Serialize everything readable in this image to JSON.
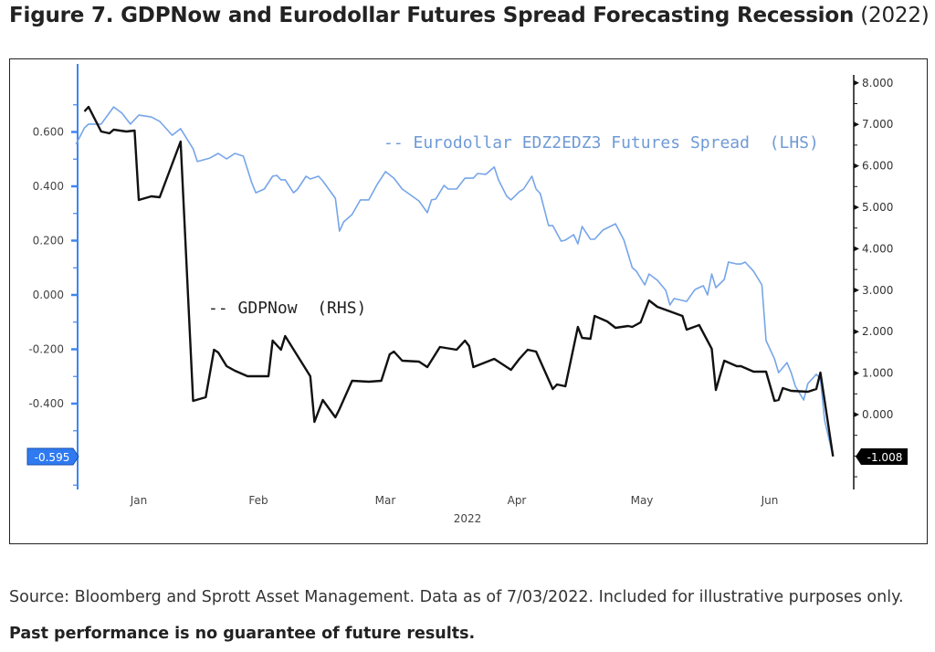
{
  "title": {
    "bold": "Figure 7. GDPNow and Eurodollar Futures Spread Forecasting Recession",
    "normal": " (2022)"
  },
  "caption": {
    "text": "Source: Bloomberg and Sprott Asset Management. Data as of 7/03/2022. Included for illustrative purposes only. ",
    "bold": "Past performance is no guarantee of future results."
  },
  "chart_data": {
    "type": "line",
    "xlabel": "2022",
    "x_ticks": [
      "Jan",
      "Feb",
      "Mar",
      "Apr",
      "May",
      "Jun"
    ],
    "y_left": {
      "ticks": [
        "0.600",
        "0.400",
        "0.200",
        "0.000",
        "-0.200",
        "-0.400"
      ],
      "range": [
        -0.7,
        0.8
      ],
      "color": "#3d86ef"
    },
    "y_right": {
      "ticks": [
        "8.000",
        "7.000",
        "6.000",
        "5.000",
        "4.000",
        "3.000",
        "2.000",
        "1.000",
        "0.000"
      ],
      "range": [
        -1.9,
        8.3
      ],
      "color": "#111111"
    },
    "grid": false,
    "series": [
      {
        "name": "-- Eurodollar EDZ2EDZ3 Futures Spread  (LHS)",
        "axis": "left",
        "color": "#76a5e8",
        "last_value_label": "-0.595",
        "points": [
          [
            "2022-01-01",
            0.555
          ],
          [
            "2022-01-03",
            0.615
          ],
          [
            "2022-01-04",
            0.629
          ],
          [
            "2022-01-07",
            0.629
          ],
          [
            "2022-01-10",
            0.692
          ],
          [
            "2022-01-12",
            0.669
          ],
          [
            "2022-01-14",
            0.629
          ],
          [
            "2022-01-16",
            0.662
          ],
          [
            "2022-01-19",
            0.655
          ],
          [
            "2022-01-21",
            0.639
          ],
          [
            "2022-01-24",
            0.588
          ],
          [
            "2022-01-26",
            0.612
          ],
          [
            "2022-01-29",
            0.538
          ],
          [
            "2022-01-30",
            0.491
          ],
          [
            "2022-02-02",
            0.504
          ],
          [
            "2022-02-04",
            0.521
          ],
          [
            "2022-02-06",
            0.501
          ],
          [
            "2022-02-08",
            0.521
          ],
          [
            "2022-02-10",
            0.511
          ],
          [
            "2022-02-12",
            0.413
          ],
          [
            "2022-02-13",
            0.376
          ],
          [
            "2022-02-15",
            0.39
          ],
          [
            "2022-02-17",
            0.437
          ],
          [
            "2022-02-18",
            0.44
          ],
          [
            "2022-02-19",
            0.424
          ],
          [
            "2022-02-20",
            0.424
          ],
          [
            "2022-02-22",
            0.376
          ],
          [
            "2022-02-23",
            0.39
          ],
          [
            "2022-02-25",
            0.437
          ],
          [
            "2022-02-26",
            0.427
          ],
          [
            "2022-02-28",
            0.437
          ],
          [
            "2022-03-01",
            0.42
          ],
          [
            "2022-03-04",
            0.356
          ],
          [
            "2022-03-05",
            0.235
          ],
          [
            "2022-03-06",
            0.269
          ],
          [
            "2022-03-08",
            0.296
          ],
          [
            "2022-03-10",
            0.35
          ],
          [
            "2022-03-12",
            0.35
          ],
          [
            "2022-03-14",
            0.407
          ],
          [
            "2022-03-16",
            0.454
          ],
          [
            "2022-03-18",
            0.43
          ],
          [
            "2022-03-20",
            0.39
          ],
          [
            "2022-03-24",
            0.346
          ],
          [
            "2022-03-26",
            0.303
          ],
          [
            "2022-03-27",
            0.35
          ],
          [
            "2022-03-28",
            0.353
          ],
          [
            "2022-03-30",
            0.403
          ],
          [
            "2022-03-31",
            0.39
          ],
          [
            "2022-04-02",
            0.39
          ],
          [
            "2022-04-04",
            0.43
          ],
          [
            "2022-04-06",
            0.43
          ],
          [
            "2022-04-07",
            0.447
          ],
          [
            "2022-04-09",
            0.444
          ],
          [
            "2022-04-11",
            0.471
          ],
          [
            "2022-04-12",
            0.424
          ],
          [
            "2022-04-14",
            0.363
          ],
          [
            "2022-04-15",
            0.35
          ],
          [
            "2022-04-17",
            0.38
          ],
          [
            "2022-04-18",
            0.39
          ],
          [
            "2022-04-20",
            0.437
          ],
          [
            "2022-04-21",
            0.39
          ],
          [
            "2022-04-22",
            0.373
          ],
          [
            "2022-04-24",
            0.255
          ],
          [
            "2022-04-25",
            0.255
          ],
          [
            "2022-04-27",
            0.198
          ],
          [
            "2022-04-28",
            0.202
          ],
          [
            "2022-04-30",
            0.222
          ],
          [
            "2022-05-01",
            0.188
          ],
          [
            "2022-05-02",
            0.252
          ],
          [
            "2022-05-04",
            0.205
          ],
          [
            "2022-05-05",
            0.205
          ],
          [
            "2022-05-07",
            0.239
          ],
          [
            "2022-05-10",
            0.262
          ],
          [
            "2022-05-12",
            0.202
          ],
          [
            "2022-05-14",
            0.101
          ],
          [
            "2022-05-15",
            0.087
          ],
          [
            "2022-05-17",
            0.037
          ],
          [
            "2022-05-18",
            0.077
          ],
          [
            "2022-05-20",
            0.054
          ],
          [
            "2022-05-22",
            0.017
          ],
          [
            "2022-05-23",
            -0.037
          ],
          [
            "2022-05-24",
            -0.013
          ],
          [
            "2022-05-27",
            -0.024
          ],
          [
            "2022-05-29",
            0.02
          ],
          [
            "2022-05-31",
            0.034
          ],
          [
            "2022-06-01",
            0.0
          ],
          [
            "2022-06-02",
            0.077
          ],
          [
            "2022-06-03",
            0.027
          ],
          [
            "2022-06-05",
            0.057
          ],
          [
            "2022-06-06",
            0.121
          ],
          [
            "2022-06-08",
            0.114
          ],
          [
            "2022-06-09",
            0.114
          ],
          [
            "2022-06-10",
            0.121
          ],
          [
            "2022-06-12",
            0.087
          ],
          [
            "2022-06-14",
            0.037
          ],
          [
            "2022-06-15",
            -0.168
          ],
          [
            "2022-06-17",
            -0.235
          ],
          [
            "2022-06-18",
            -0.286
          ],
          [
            "2022-06-20",
            -0.249
          ],
          [
            "2022-06-21",
            -0.286
          ],
          [
            "2022-06-22",
            -0.336
          ],
          [
            "2022-06-24",
            -0.387
          ],
          [
            "2022-06-25",
            -0.326
          ],
          [
            "2022-06-27",
            -0.292
          ],
          [
            "2022-06-28",
            -0.309
          ],
          [
            "2022-06-29",
            -0.461
          ],
          [
            "2022-07-01",
            -0.595
          ]
        ]
      },
      {
        "name": "-- GDPNow  (RHS)",
        "axis": "right",
        "color": "#111111",
        "last_value_label": "-1.008",
        "points": [
          [
            "2022-01-03",
            7.313
          ],
          [
            "2022-01-04",
            7.423
          ],
          [
            "2022-01-07",
            6.828
          ],
          [
            "2022-01-09",
            6.784
          ],
          [
            "2022-01-10",
            6.872
          ],
          [
            "2022-01-13",
            6.828
          ],
          [
            "2022-01-15",
            6.85
          ],
          [
            "2022-01-16",
            5.176
          ],
          [
            "2022-01-19",
            5.264
          ],
          [
            "2022-01-21",
            5.242
          ],
          [
            "2022-01-26",
            6.586
          ],
          [
            "2022-01-29",
            0.33
          ],
          [
            "2022-02-01",
            0.419
          ],
          [
            "2022-02-03",
            1.564
          ],
          [
            "2022-02-04",
            1.498
          ],
          [
            "2022-02-06",
            1.167
          ],
          [
            "2022-02-08",
            1.057
          ],
          [
            "2022-02-11",
            0.925
          ],
          [
            "2022-02-16",
            0.925
          ],
          [
            "2022-02-17",
            1.784
          ],
          [
            "2022-02-19",
            1.564
          ],
          [
            "2022-02-20",
            1.894
          ],
          [
            "2022-02-26",
            0.925
          ],
          [
            "2022-02-27",
            -0.176
          ],
          [
            "2022-03-01",
            0.352
          ],
          [
            "2022-03-04",
            -0.066
          ],
          [
            "2022-03-05",
            0.132
          ],
          [
            "2022-03-08",
            0.815
          ],
          [
            "2022-03-12",
            0.793
          ],
          [
            "2022-03-15",
            0.815
          ],
          [
            "2022-03-17",
            1.454
          ],
          [
            "2022-03-18",
            1.52
          ],
          [
            "2022-03-20",
            1.3
          ],
          [
            "2022-03-24",
            1.278
          ],
          [
            "2022-03-26",
            1.145
          ],
          [
            "2022-03-29",
            1.63
          ],
          [
            "2022-04-02",
            1.564
          ],
          [
            "2022-04-04",
            1.784
          ],
          [
            "2022-04-05",
            1.652
          ],
          [
            "2022-04-06",
            1.145
          ],
          [
            "2022-04-11",
            1.344
          ],
          [
            "2022-04-15",
            1.079
          ],
          [
            "2022-04-17",
            1.344
          ],
          [
            "2022-04-19",
            1.564
          ],
          [
            "2022-04-21",
            1.52
          ],
          [
            "2022-04-25",
            0.617
          ],
          [
            "2022-04-26",
            0.727
          ],
          [
            "2022-04-28",
            0.683
          ],
          [
            "2022-05-01",
            2.115
          ],
          [
            "2022-05-02",
            1.85
          ],
          [
            "2022-05-04",
            1.828
          ],
          [
            "2022-05-05",
            2.379
          ],
          [
            "2022-05-08",
            2.247
          ],
          [
            "2022-05-10",
            2.093
          ],
          [
            "2022-05-13",
            2.137
          ],
          [
            "2022-05-14",
            2.115
          ],
          [
            "2022-05-16",
            2.225
          ],
          [
            "2022-05-18",
            2.753
          ],
          [
            "2022-05-20",
            2.599
          ],
          [
            "2022-05-23",
            2.489
          ],
          [
            "2022-05-26",
            2.379
          ],
          [
            "2022-05-27",
            2.048
          ],
          [
            "2022-05-30",
            2.159
          ],
          [
            "2022-06-02",
            1.586
          ],
          [
            "2022-06-03",
            0.595
          ],
          [
            "2022-06-05",
            1.3
          ],
          [
            "2022-06-08",
            1.167
          ],
          [
            "2022-06-09",
            1.167
          ],
          [
            "2022-06-12",
            1.035
          ],
          [
            "2022-06-15",
            1.035
          ],
          [
            "2022-06-17",
            0.33
          ],
          [
            "2022-06-18",
            0.352
          ],
          [
            "2022-06-19",
            0.639
          ],
          [
            "2022-06-21",
            0.573
          ],
          [
            "2022-06-25",
            0.551
          ],
          [
            "2022-06-27",
            0.617
          ],
          [
            "2022-06-28",
            1.013
          ],
          [
            "2022-07-01",
            -1.008
          ]
        ]
      }
    ]
  }
}
